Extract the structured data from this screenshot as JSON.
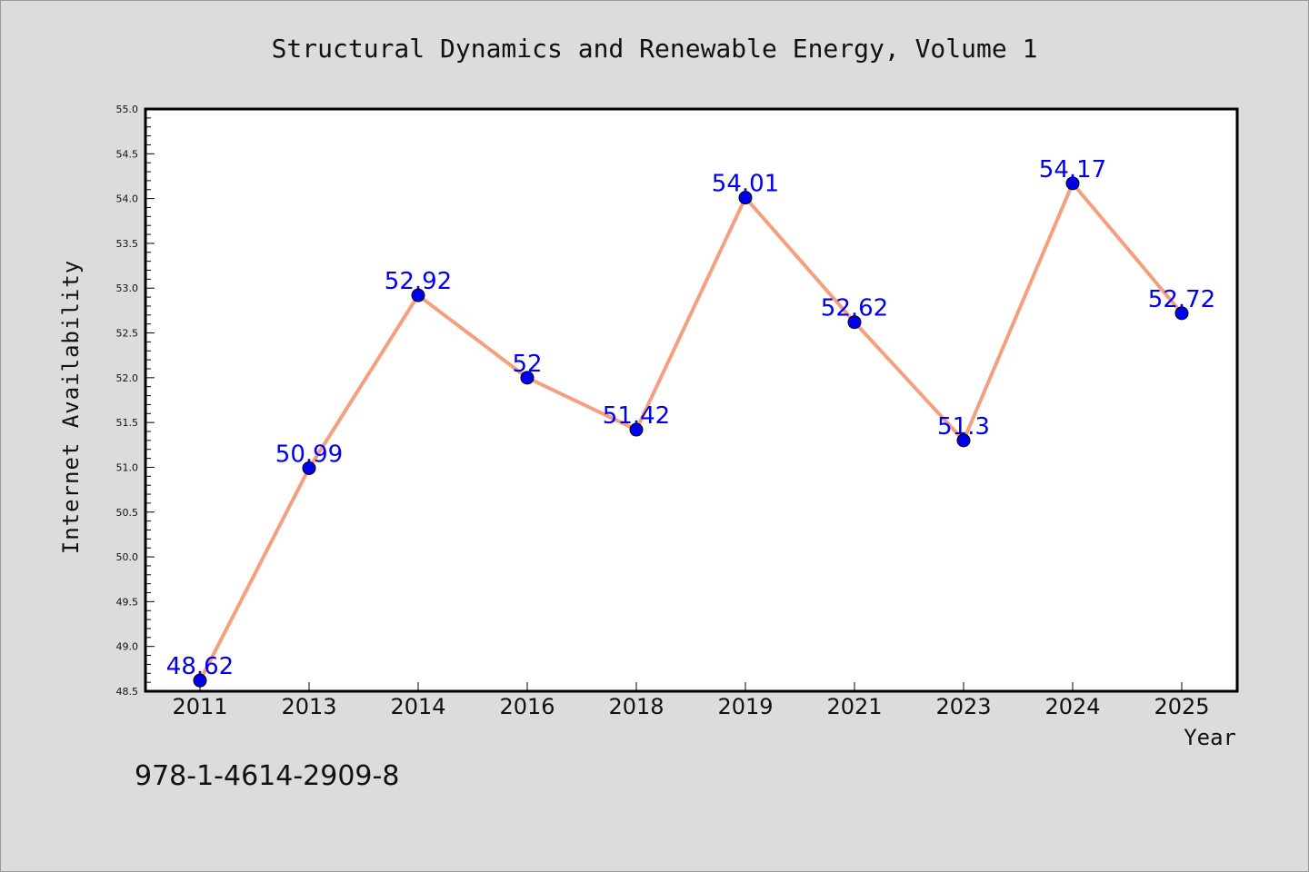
{
  "chart_data": {
    "type": "line",
    "title": "Structural Dynamics and Renewable Energy, Volume 1",
    "xlabel": "Year",
    "ylabel": "Internet Availability",
    "categories": [
      "2011",
      "2013",
      "2014",
      "2016",
      "2018",
      "2019",
      "2021",
      "2023",
      "2024",
      "2025"
    ],
    "values": [
      48.62,
      50.99,
      52.92,
      52,
      51.42,
      54.01,
      52.62,
      51.3,
      54.17,
      52.72
    ],
    "value_labels": [
      "48.62",
      "50.99",
      "52.92",
      "52",
      "51.42",
      "54.01",
      "52.62",
      "51.3",
      "54.17",
      "52.72"
    ],
    "ylim": [
      48.5,
      55.0
    ],
    "yticks": [
      "48.5",
      "49.0",
      "49.5",
      "50.0",
      "50.5",
      "51.0",
      "51.5",
      "52.0",
      "52.5",
      "53.0",
      "53.5",
      "54.0",
      "54.5",
      "55.0"
    ],
    "grid": false,
    "legend": "none",
    "colors": {
      "background": "#dcdcdc",
      "plot_background": "#ffffff",
      "line": "#f4a07f",
      "marker": "#0000ee",
      "data_label": "#0000ee"
    }
  },
  "footer": {
    "isbn": "978-1-4614-2909-8"
  }
}
